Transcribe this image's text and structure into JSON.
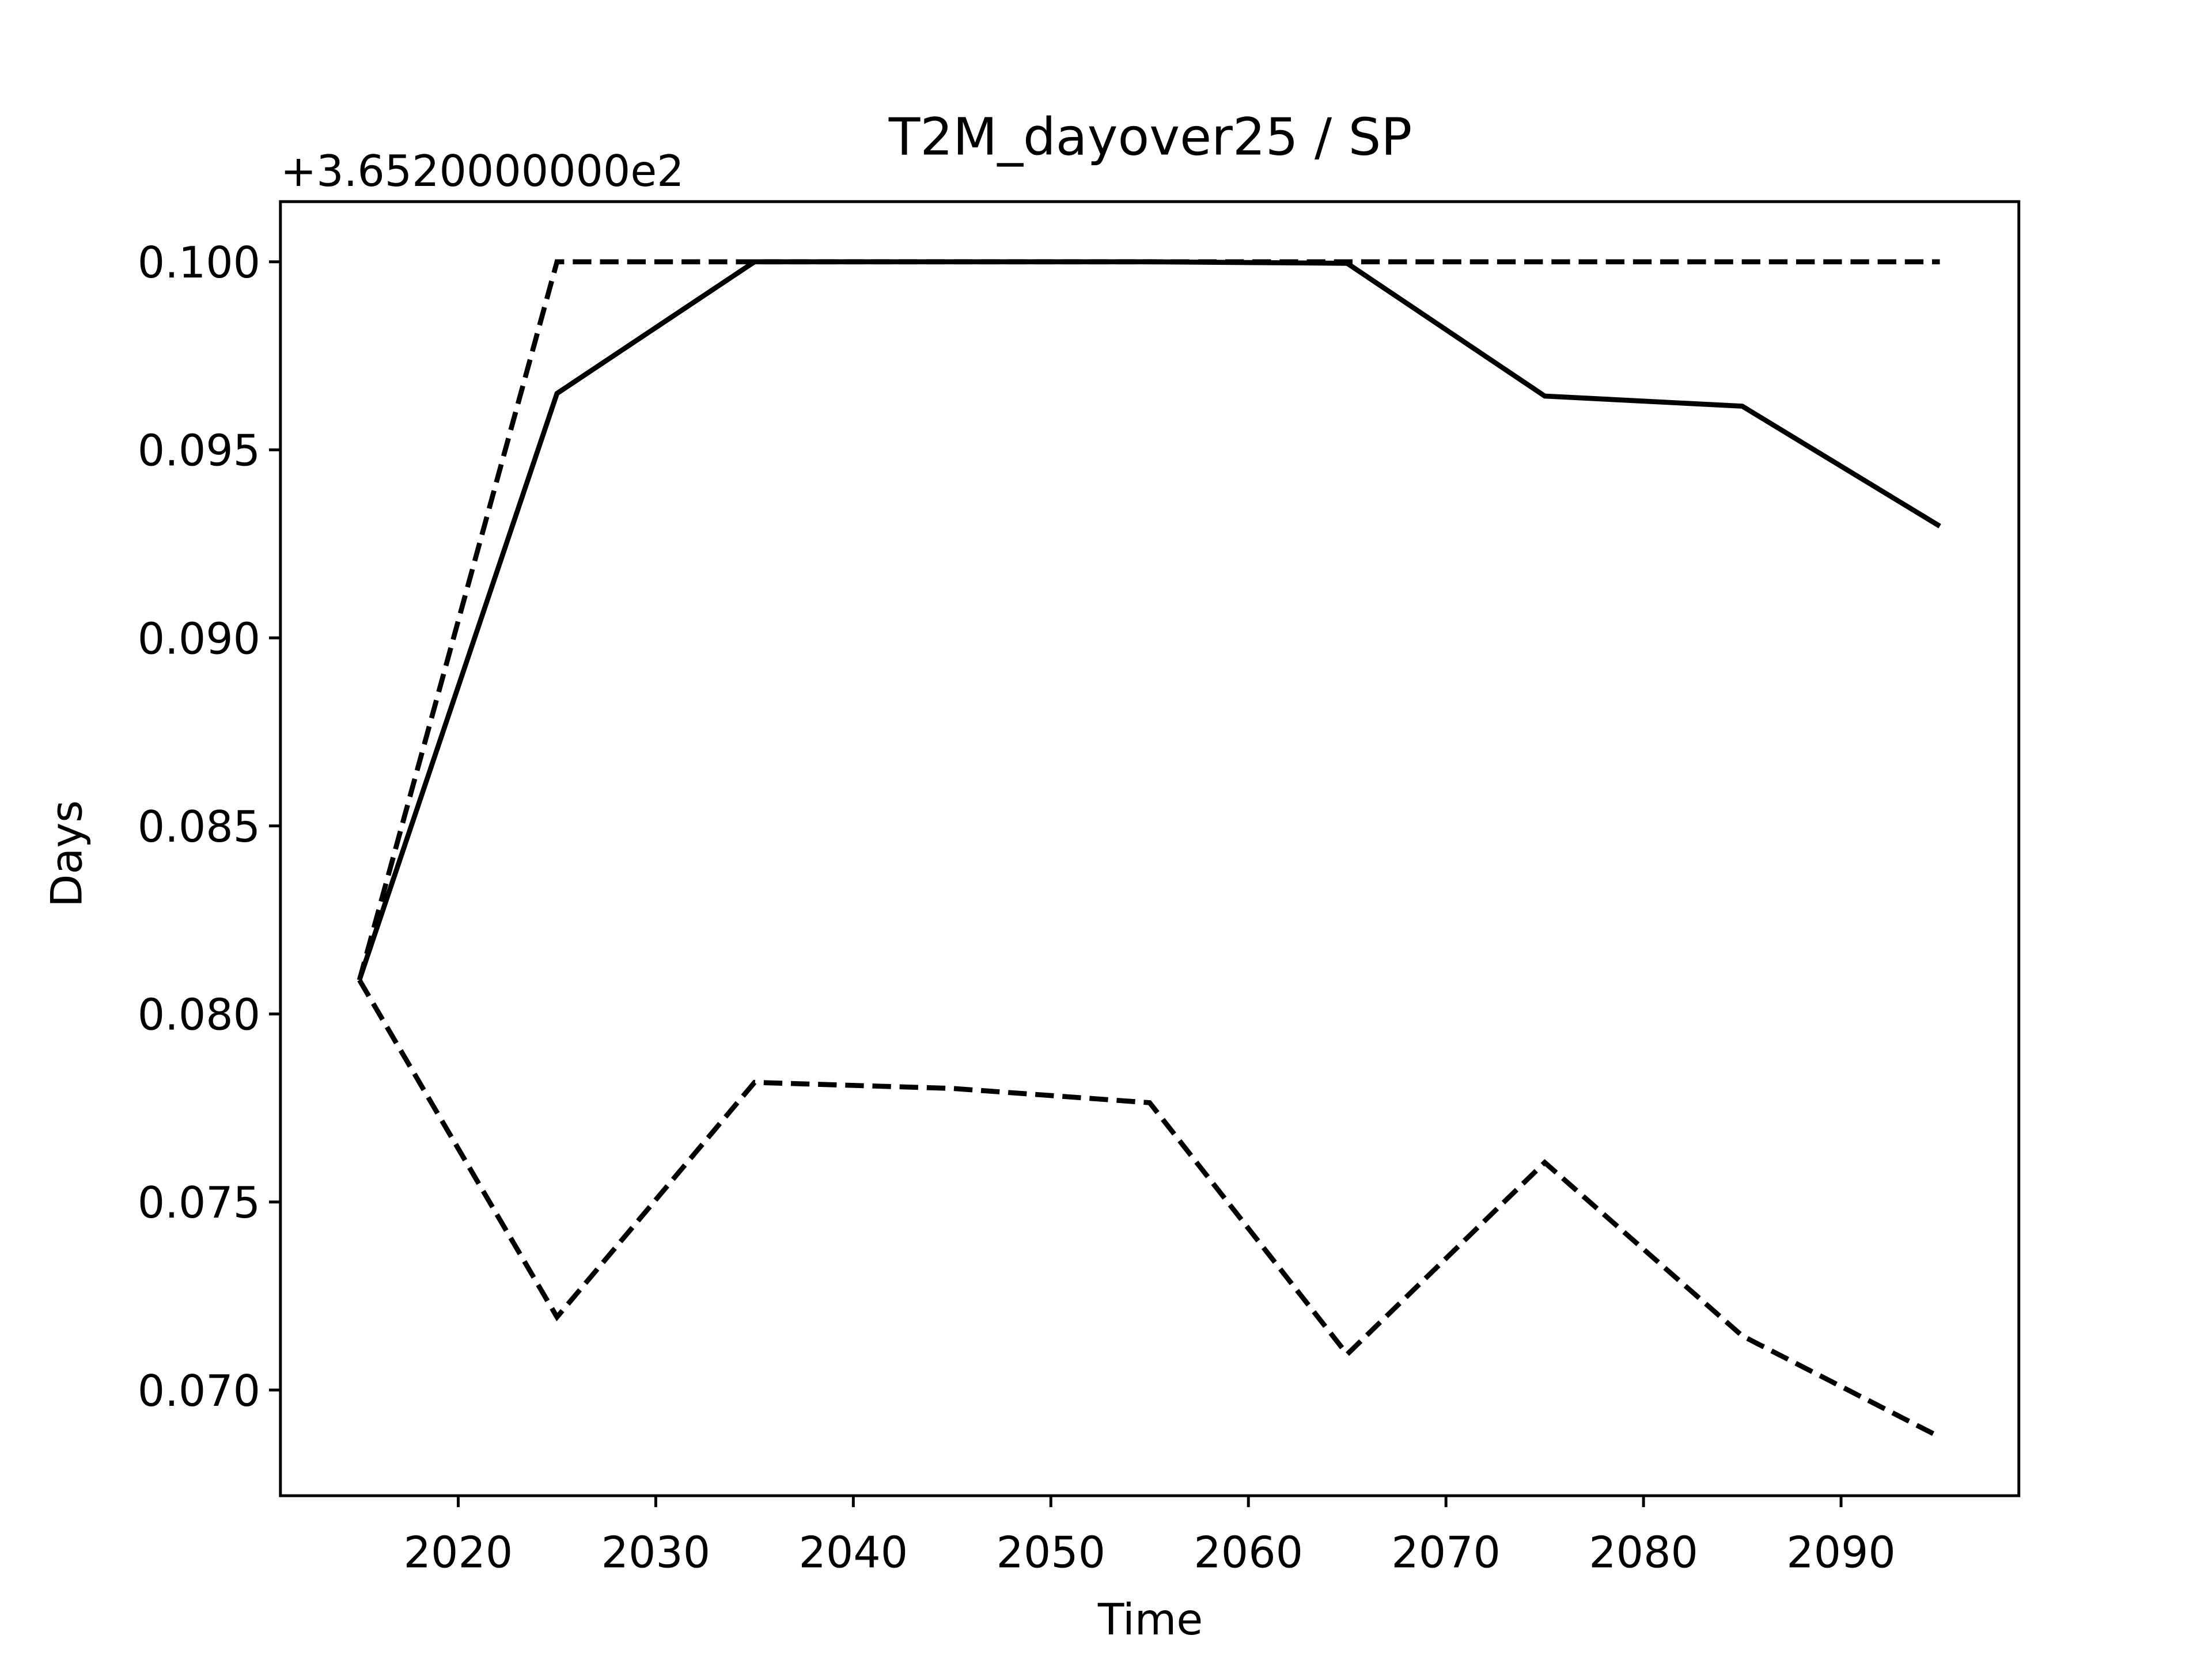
{
  "chart_data": {
    "type": "line",
    "title": "T2M_dayover25 / SP",
    "x_label": "Time",
    "y_label": "Days",
    "y_offset_label": "+3.6520000000e2",
    "x": [
      2015,
      2025,
      2035,
      2045,
      2055,
      2065,
      2075,
      2085,
      2095
    ],
    "series": [
      {
        "color": "#000000",
        "linestyle": "solid",
        "values": [
          0.08091,
          0.0965,
          0.1,
          0.1,
          0.1,
          0.09996,
          0.09643,
          0.09616,
          0.09297
        ]
      },
      {
        "color": "#000000",
        "linestyle": "dashed",
        "values": [
          0.0809,
          0.1,
          0.1,
          0.1,
          0.1,
          0.1,
          0.1,
          0.1,
          0.1
        ]
      },
      {
        "color": "#000000",
        "linestyle": "dashed",
        "values": [
          0.0809,
          0.07194,
          0.07818,
          0.07802,
          0.07764,
          0.07095,
          0.07605,
          0.07144,
          0.06875
        ]
      }
    ],
    "xlim": [
      2011,
      2099
    ],
    "xticks": [
      2020,
      2030,
      2040,
      2050,
      2060,
      2070,
      2080,
      2090
    ],
    "ylim": [
      0.06719,
      0.1016
    ],
    "yticks": [
      {
        "value": 0.07,
        "label": "0.070"
      },
      {
        "value": 0.075,
        "label": "0.075"
      },
      {
        "value": 0.08,
        "label": "0.080"
      },
      {
        "value": 0.085,
        "label": "0.085"
      },
      {
        "value": 0.09,
        "label": "0.090"
      },
      {
        "value": 0.095,
        "label": "0.095"
      },
      {
        "value": 0.1,
        "label": "0.100"
      }
    ],
    "grid": false
  }
}
